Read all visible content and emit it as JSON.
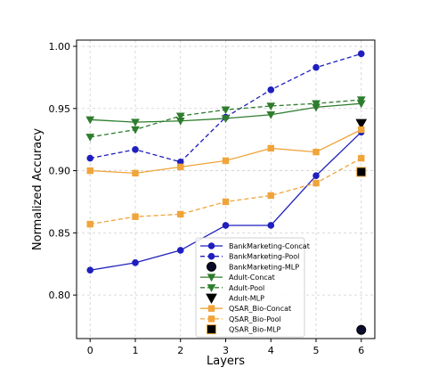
{
  "chart_data": {
    "type": "line",
    "xlabel": "Layers",
    "ylabel": "Normalized Accuracy",
    "x": [
      0,
      1,
      2,
      3,
      4,
      5,
      6
    ],
    "xlim": [
      -0.3,
      6.3
    ],
    "ylim": [
      0.765,
      1.005
    ],
    "xticks": [
      "0",
      "1",
      "2",
      "3",
      "4",
      "5",
      "6"
    ],
    "yticks": [
      {
        "value": 0.8,
        "label": "0.80"
      },
      {
        "value": 0.85,
        "label": "0.85"
      },
      {
        "value": 0.9,
        "label": "0.90"
      },
      {
        "value": 0.95,
        "label": "0.95"
      },
      {
        "value": 1.0,
        "label": "1.00"
      }
    ],
    "grid": true,
    "legend_position": "lower-center",
    "series": [
      {
        "name": "BankMarketing-Concat",
        "color": "#1f1fbf",
        "dash": "solid",
        "marker": "circle",
        "values": [
          0.82,
          0.826,
          0.836,
          0.856,
          0.856,
          0.896,
          0.931
        ]
      },
      {
        "name": "BankMarketing-Pool",
        "color": "#1f1fbf",
        "dash": "dashed",
        "marker": "circle",
        "values": [
          0.91,
          0.917,
          0.907,
          0.943,
          0.965,
          0.983,
          0.994
        ]
      },
      {
        "name": "BankMarketing-MLP",
        "color": "#0a0a2a",
        "dash": "none",
        "marker": "big-circle",
        "points": [
          {
            "x": 6,
            "y": 0.772
          }
        ]
      },
      {
        "name": "Adult-Concat",
        "color": "#2e7d2e",
        "dash": "solid",
        "marker": "triangle-down",
        "values": [
          0.941,
          0.939,
          0.94,
          0.942,
          0.945,
          0.951,
          0.954
        ]
      },
      {
        "name": "Adult-Pool",
        "color": "#2e7d2e",
        "dash": "dashed",
        "marker": "triangle-down",
        "values": [
          0.927,
          0.933,
          0.944,
          0.949,
          0.952,
          0.954,
          0.957
        ]
      },
      {
        "name": "Adult-MLP",
        "color": "#000000",
        "dash": "none",
        "marker": "big-triangle-down",
        "points": [
          {
            "x": 6,
            "y": 0.938
          }
        ]
      },
      {
        "name": "QSAR_Bio-Concat",
        "color": "#f0a43a",
        "dash": "solid",
        "marker": "square",
        "values": [
          0.9,
          0.898,
          0.903,
          0.908,
          0.918,
          0.915,
          0.933
        ]
      },
      {
        "name": "QSAR_Bio-Pool",
        "color": "#f0a43a",
        "dash": "dashed",
        "marker": "square",
        "values": [
          0.857,
          0.863,
          0.865,
          0.875,
          0.88,
          0.89,
          0.91
        ]
      },
      {
        "name": "QSAR_Bio-MLP",
        "color": "#000000",
        "dash": "none",
        "marker": "big-square",
        "points": [
          {
            "x": 6,
            "y": 0.899
          }
        ]
      }
    ]
  }
}
